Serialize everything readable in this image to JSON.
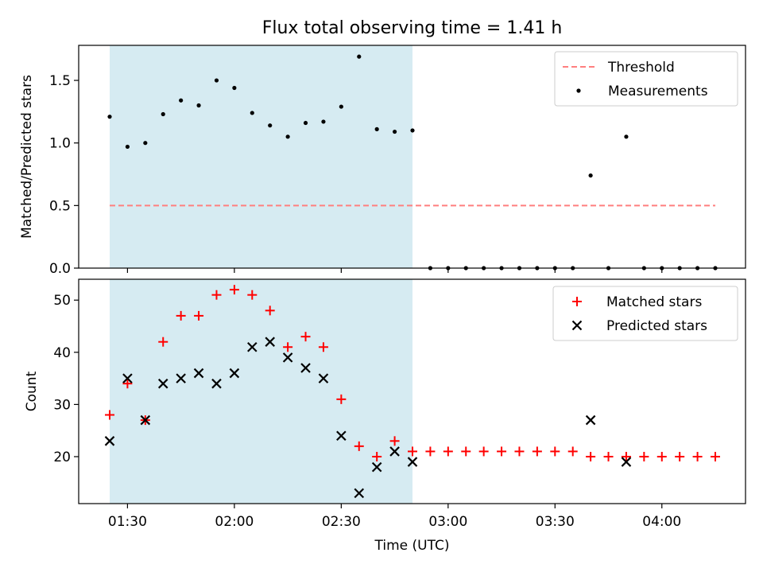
{
  "chart_data": [
    {
      "type": "scatter",
      "title": "Flux total observing time = 1.41 h",
      "ylabel": "Matched/Predicted stars",
      "ylim": [
        0,
        1.78
      ],
      "y_ticks": [
        "0.0",
        "0.5",
        "1.0",
        "1.5"
      ],
      "legend_position": "top-right",
      "observing_window": [
        "01:25",
        "02:50"
      ],
      "threshold": {
        "name": "Threshold",
        "y": 0.5,
        "x_range": [
          "01:25",
          "04:15"
        ],
        "style": "dashed",
        "color": "#ff7f7f"
      },
      "series": [
        {
          "name": "Measurements",
          "color": "#000000",
          "marker": "dot",
          "x": [
            "01:25",
            "01:30",
            "01:35",
            "01:40",
            "01:45",
            "01:50",
            "01:55",
            "02:00",
            "02:05",
            "02:10",
            "02:15",
            "02:20",
            "02:25",
            "02:30",
            "02:35",
            "02:40",
            "02:45",
            "02:50",
            "02:55",
            "03:00",
            "03:05",
            "03:10",
            "03:15",
            "03:20",
            "03:25",
            "03:30",
            "03:35",
            "03:40",
            "03:45",
            "03:50",
            "03:55",
            "04:00",
            "04:05",
            "04:10",
            "04:15"
          ],
          "y": [
            1.21,
            0.97,
            1.0,
            1.23,
            1.34,
            1.3,
            1.5,
            1.44,
            1.24,
            1.14,
            1.05,
            1.16,
            1.17,
            1.29,
            1.69,
            1.11,
            1.09,
            1.1,
            0,
            0,
            0,
            0,
            0,
            0,
            0,
            0,
            0,
            0.74,
            0,
            1.05,
            0,
            0,
            0,
            0,
            0
          ]
        }
      ]
    },
    {
      "type": "scatter",
      "xlabel": "Time (UTC)",
      "ylabel": "Count",
      "ylim": [
        11,
        54
      ],
      "y_ticks": [
        "20",
        "30",
        "40",
        "50"
      ],
      "x_ticks": [
        "01:30",
        "02:00",
        "02:30",
        "03:00",
        "03:30",
        "04:00"
      ],
      "legend_position": "top-right",
      "observing_window": [
        "01:25",
        "02:50"
      ],
      "series": [
        {
          "name": "Matched stars",
          "color": "#ff0000",
          "marker": "plus",
          "x": [
            "01:25",
            "01:30",
            "01:35",
            "01:40",
            "01:45",
            "01:50",
            "01:55",
            "02:00",
            "02:05",
            "02:10",
            "02:15",
            "02:20",
            "02:25",
            "02:30",
            "02:35",
            "02:40",
            "02:45",
            "02:50",
            "02:55",
            "03:00",
            "03:05",
            "03:10",
            "03:15",
            "03:20",
            "03:25",
            "03:30",
            "03:35",
            "03:40",
            "03:45",
            "03:50",
            "03:55",
            "04:00",
            "04:05",
            "04:10",
            "04:15"
          ],
          "y": [
            28,
            34,
            27,
            42,
            47,
            47,
            51,
            52,
            51,
            48,
            41,
            43,
            41,
            31,
            22,
            20,
            23,
            21,
            21,
            21,
            21,
            21,
            21,
            21,
            21,
            21,
            21,
            20,
            20,
            20,
            20,
            20,
            20,
            20,
            20
          ]
        },
        {
          "name": "Predicted stars",
          "color": "#000000",
          "marker": "x",
          "x": [
            "01:25",
            "01:30",
            "01:35",
            "01:40",
            "01:45",
            "01:50",
            "01:55",
            "02:00",
            "02:05",
            "02:10",
            "02:15",
            "02:20",
            "02:25",
            "02:30",
            "02:35",
            "02:40",
            "02:45",
            "02:50",
            "03:40",
            "03:50"
          ],
          "y": [
            23,
            35,
            27,
            34,
            35,
            36,
            34,
            36,
            41,
            42,
            39,
            37,
            35,
            24,
            13,
            18,
            21,
            19,
            27,
            19
          ]
        }
      ]
    }
  ],
  "colors": {
    "span": "#add8e6",
    "axes": "#000000"
  }
}
